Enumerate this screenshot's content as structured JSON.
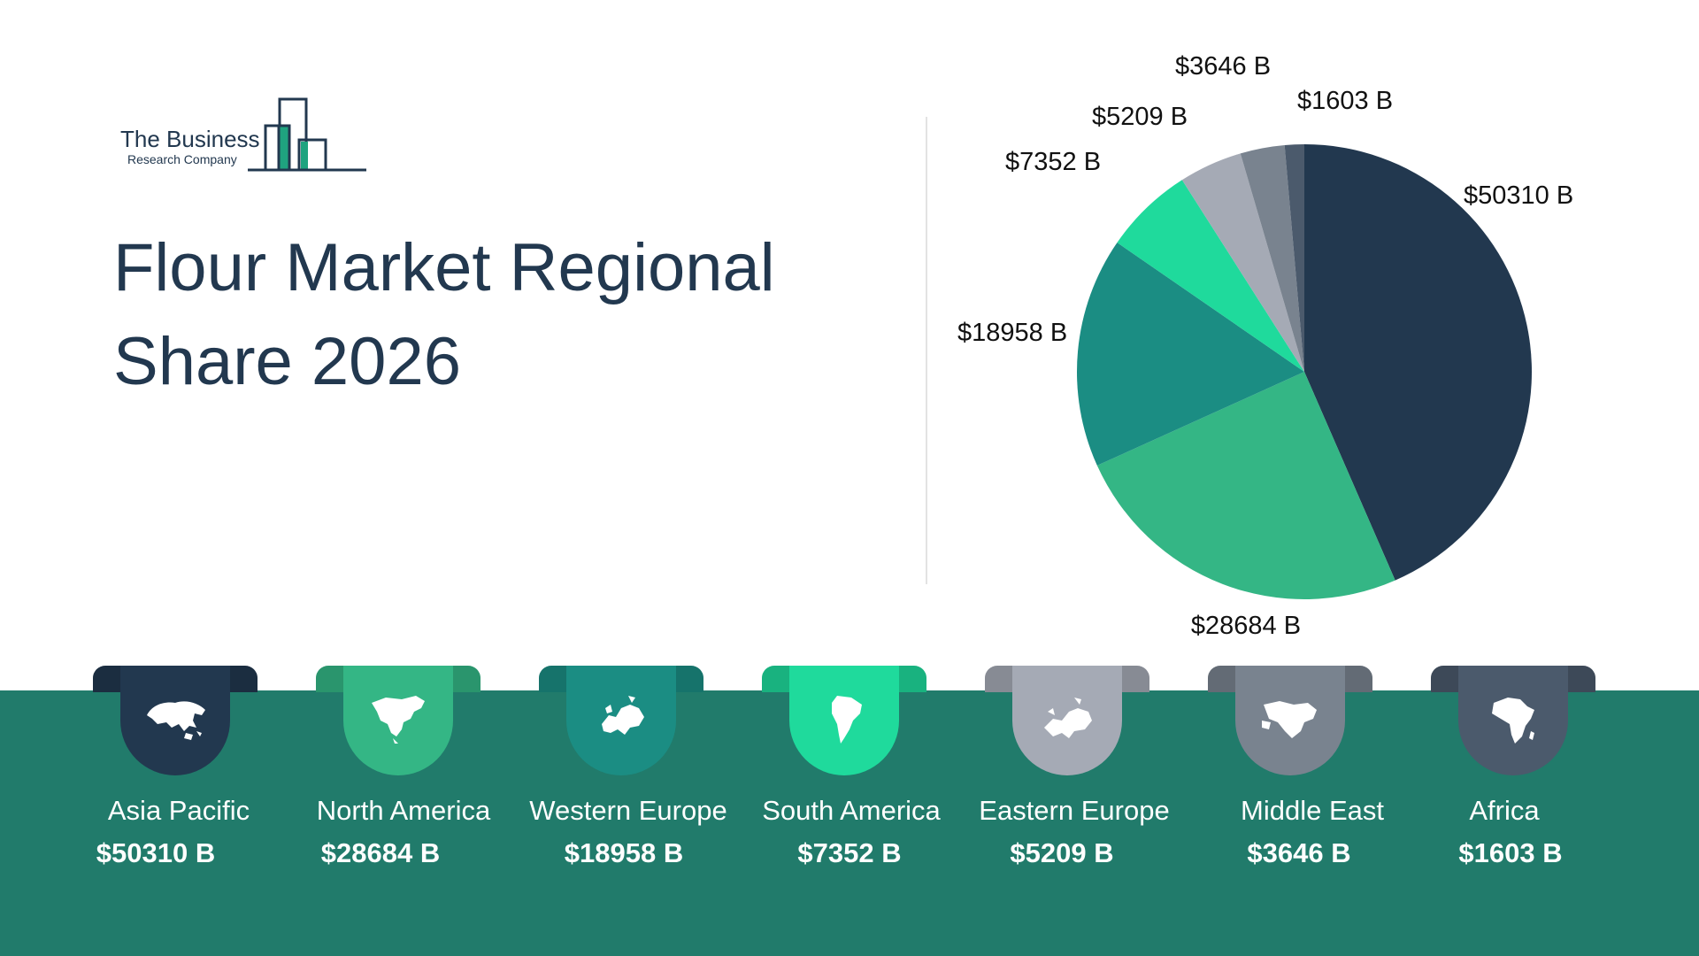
{
  "logo": {
    "line1": "The Business",
    "line2": "Research Company",
    "accent_color": "#1fa37f",
    "line_color": "#22384f"
  },
  "title": "Flour Market Regional Share 2026",
  "chart_data": {
    "type": "pie",
    "title": "Flour Market Regional Share 2026",
    "slices": [
      {
        "region": "Asia Pacific",
        "value": 50310,
        "label": "$50310 B",
        "color": "#22384f"
      },
      {
        "region": "North America",
        "value": 28684,
        "label": "$28684 B",
        "color": "#34b685"
      },
      {
        "region": "Western Europe",
        "value": 18958,
        "label": "$18958 B",
        "color": "#1b8d83"
      },
      {
        "region": "South America",
        "value": 7352,
        "label": "$7352 B",
        "color": "#1fda9c"
      },
      {
        "region": "Eastern Europe",
        "value": 5209,
        "label": "$5209 B",
        "color": "#a5aab5"
      },
      {
        "region": "Middle East",
        "value": 3646,
        "label": "$3646 B",
        "color": "#79838f"
      },
      {
        "region": "Africa",
        "value": 1603,
        "label": "$1603 B",
        "color": "#4b5a6c"
      }
    ],
    "start": "12 o'clock",
    "direction": "clockwise",
    "legend": "bottom"
  },
  "regions": [
    {
      "name": "Asia Pacific",
      "value": "$50310 B",
      "color": "#22384f",
      "icon": "asia-map-icon"
    },
    {
      "name": "North America",
      "value": "$28684 B",
      "color": "#34b685",
      "icon": "north-america-map-icon"
    },
    {
      "name": "Western Europe",
      "value": "$18958 B",
      "color": "#1b8d83",
      "icon": "western-europe-map-icon"
    },
    {
      "name": "South America",
      "value": "$7352 B",
      "color": "#1fda9c",
      "icon": "south-america-map-icon"
    },
    {
      "name": "Eastern Europe",
      "value": "$5209 B",
      "color": "#a5aab5",
      "icon": "eastern-europe-map-icon"
    },
    {
      "name": "Middle East",
      "value": "$3646 B",
      "color": "#79838f",
      "icon": "middle-east-map-icon"
    },
    {
      "name": "Africa",
      "value": "$1603 B",
      "color": "#4b5a6c",
      "icon": "africa-map-icon"
    }
  ],
  "band_color": "#217b6b"
}
